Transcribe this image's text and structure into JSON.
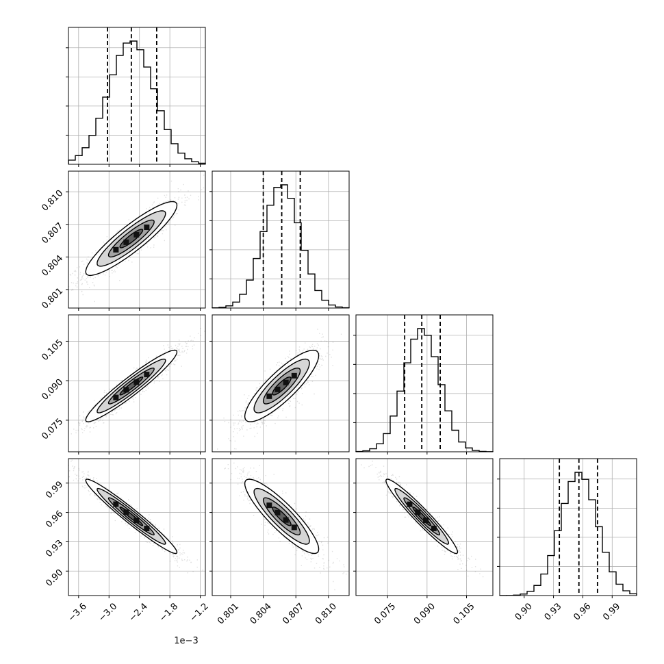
{
  "chart_data": {
    "type": "corner",
    "n_params": 4,
    "params": [
      {
        "range": [
          -3.8,
          -1.1
        ],
        "ticks": [
          -3.6,
          -3.0,
          -2.4,
          -1.8,
          -1.2
        ],
        "tick_labels": [
          "−3.6",
          "−3.0",
          "−2.4",
          "−1.8",
          "−1.2"
        ],
        "offset_text": "1e−3",
        "median": -2.56,
        "q16": -3.03,
        "q84": -2.06,
        "sigma": 0.45
      },
      {
        "range": [
          0.7993,
          0.8119
        ],
        "ticks": [
          0.801,
          0.804,
          0.807,
          0.81
        ],
        "tick_labels": [
          "0.801",
          "0.804",
          "0.807",
          "0.810"
        ],
        "median": 0.8057,
        "q16": 0.804,
        "q84": 0.8074,
        "sigma": 0.0017
      },
      {
        "range": [
          0.063,
          0.115
        ],
        "ticks": [
          0.075,
          0.09,
          0.105
        ],
        "tick_labels": [
          "0.075",
          "0.090",
          "0.105"
        ],
        "median": 0.088,
        "q16": 0.0815,
        "q84": 0.095,
        "sigma": 0.0068
      },
      {
        "range": [
          0.875,
          1.015
        ],
        "ticks": [
          0.9,
          0.93,
          0.96,
          0.99
        ],
        "tick_labels": [
          "0.90",
          "0.93",
          "0.96",
          "0.99"
        ],
        "median": 0.956,
        "q16": 0.936,
        "q84": 0.975,
        "sigma": 0.019
      }
    ],
    "correlations": [
      [
        1.0,
        0.9,
        0.95,
        -0.97
      ],
      [
        0.9,
        1.0,
        0.85,
        -0.88
      ],
      [
        0.95,
        0.85,
        1.0,
        -0.96
      ],
      [
        -0.97,
        -0.88,
        -0.96,
        1.0
      ]
    ],
    "quantile_lines": [
      "q16",
      "median",
      "q84"
    ],
    "contour_levels_sigma": [
      0.5,
      1.0,
      1.5,
      2.0
    ],
    "grid": true,
    "colors": {
      "line": "#000000",
      "scatter": "#555555",
      "grid": "#b0b0b0"
    }
  }
}
